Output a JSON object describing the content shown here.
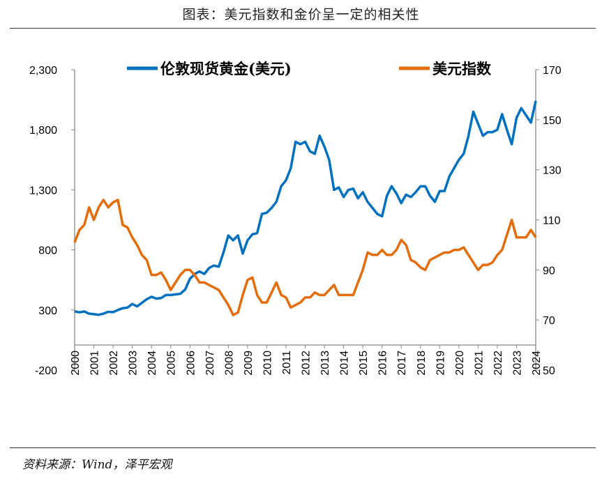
{
  "title": "图表：美元指数和金价呈一定的相关性",
  "source": "资料来源：Wind，泽平宏观",
  "chart_data": {
    "type": "line",
    "title": "",
    "legend_position": "top",
    "grid": false,
    "x": [
      "2000-01",
      "2000-04",
      "2000-07",
      "2000-10",
      "2001-01",
      "2001-04",
      "2001-07",
      "2001-10",
      "2002-01",
      "2002-04",
      "2002-07",
      "2002-10",
      "2003-01",
      "2003-04",
      "2003-07",
      "2003-10",
      "2004-01",
      "2004-04",
      "2004-07",
      "2004-10",
      "2005-01",
      "2005-04",
      "2005-07",
      "2005-10",
      "2006-01",
      "2006-04",
      "2006-07",
      "2006-10",
      "2007-01",
      "2007-04",
      "2007-07",
      "2007-10",
      "2008-01",
      "2008-04",
      "2008-07",
      "2008-10",
      "2009-01",
      "2009-04",
      "2009-07",
      "2009-10",
      "2010-01",
      "2010-04",
      "2010-07",
      "2010-10",
      "2011-01",
      "2011-04",
      "2011-07",
      "2011-10",
      "2012-01",
      "2012-04",
      "2012-07",
      "2012-10",
      "2013-01",
      "2013-04",
      "2013-07",
      "2013-10",
      "2014-01",
      "2014-04",
      "2014-07",
      "2014-10",
      "2015-01",
      "2015-04",
      "2015-07",
      "2015-10",
      "2016-01",
      "2016-04",
      "2016-07",
      "2016-10",
      "2017-01",
      "2017-04",
      "2017-07",
      "2017-10",
      "2018-01",
      "2018-04",
      "2018-07",
      "2018-10",
      "2019-01",
      "2019-04",
      "2019-07",
      "2019-10",
      "2020-01",
      "2020-04",
      "2020-07",
      "2020-10",
      "2021-01",
      "2021-04",
      "2021-07",
      "2021-10",
      "2022-01",
      "2022-04",
      "2022-07",
      "2022-10",
      "2023-01",
      "2023-04",
      "2023-07",
      "2023-10",
      "2024-01"
    ],
    "x_tick_labels": [
      "2000",
      "2001",
      "2002",
      "2003",
      "2004",
      "2005",
      "2006",
      "2007",
      "2008",
      "2009",
      "2010",
      "2011",
      "2012",
      "2013",
      "2014",
      "2015",
      "2016",
      "2017",
      "2018",
      "2019",
      "2020",
      "2021",
      "2022",
      "2023",
      "2024"
    ],
    "y_left": {
      "range": [
        -200,
        2300
      ],
      "tick_labels": [
        "2,300",
        "1,800",
        "1,300",
        "800",
        "300",
        "-200"
      ],
      "ticks": [
        2300,
        1800,
        1300,
        800,
        300,
        -200
      ]
    },
    "y_right": {
      "range": [
        50,
        170
      ],
      "tick_labels": [
        "170",
        "150",
        "130",
        "110",
        "90",
        "70",
        "50"
      ],
      "ticks": [
        170,
        150,
        130,
        110,
        90,
        70,
        50
      ]
    },
    "series": [
      {
        "name": "伦敦现货黄金(美元)",
        "axis": "left",
        "color": "#0070C0",
        "values": [
          289,
          280,
          288,
          270,
          265,
          260,
          270,
          285,
          282,
          300,
          315,
          320,
          350,
          330,
          360,
          390,
          410,
          395,
          400,
          425,
          425,
          430,
          435,
          470,
          560,
          600,
          620,
          600,
          650,
          670,
          660,
          780,
          920,
          880,
          920,
          770,
          880,
          930,
          940,
          1100,
          1110,
          1150,
          1200,
          1330,
          1380,
          1480,
          1700,
          1680,
          1700,
          1620,
          1600,
          1750,
          1660,
          1550,
          1300,
          1320,
          1240,
          1300,
          1310,
          1230,
          1280,
          1200,
          1150,
          1100,
          1080,
          1250,
          1330,
          1270,
          1190,
          1260,
          1240,
          1280,
          1330,
          1330,
          1250,
          1200,
          1290,
          1290,
          1410,
          1480,
          1550,
          1600,
          1750,
          1950,
          1850,
          1750,
          1780,
          1780,
          1800,
          1930,
          1800,
          1680,
          1900,
          1980,
          1920,
          1860,
          2040
        ]
      },
      {
        "name": "美元指数",
        "axis": "right",
        "color": "#E46C0A",
        "values": [
          101,
          106,
          108,
          115,
          110,
          115,
          118,
          115,
          117,
          118,
          108,
          107,
          103,
          100,
          96,
          94,
          88,
          88,
          89,
          86,
          82,
          85,
          88,
          90,
          90,
          88,
          85,
          85,
          84,
          83,
          82,
          79,
          76,
          72,
          73,
          80,
          86,
          87,
          80,
          77,
          77,
          81,
          85,
          80,
          79,
          75,
          76,
          77,
          79,
          79,
          81,
          80,
          80,
          82,
          84,
          80,
          80,
          80,
          80,
          85,
          90,
          97,
          96,
          96,
          98,
          96,
          96,
          98,
          102,
          100,
          94,
          93,
          91,
          90,
          94,
          95,
          96,
          97,
          97,
          98,
          98,
          99,
          96,
          93,
          90,
          92,
          92,
          93,
          96,
          98,
          104,
          110,
          103,
          103,
          103,
          106,
          103
        ]
      }
    ]
  }
}
